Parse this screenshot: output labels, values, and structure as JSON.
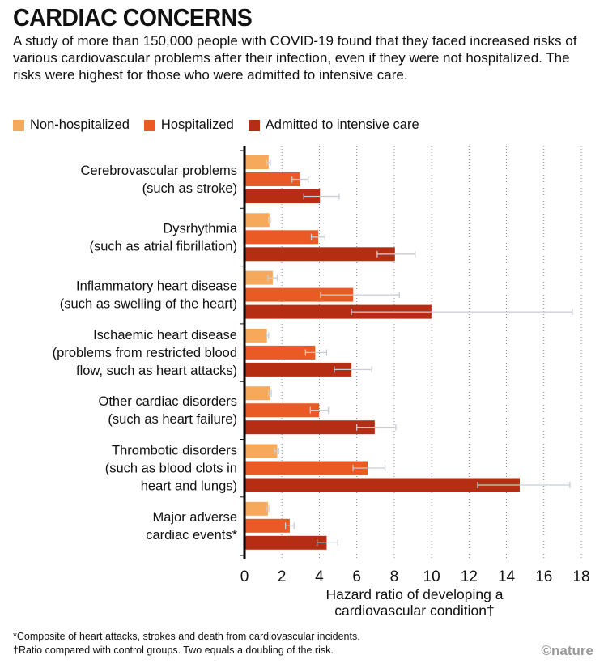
{
  "title": "CARDIAC CONCERNS",
  "subtitle": "A study of more than 150,000 people with COVID-19 found that they faced increased risks of various cardiovascular problems after their infection, even if they were not hospitalized. The risks were highest for those who were admitted to intensive care.",
  "footnotes": [
    "*Composite of heart attacks, strokes and death from cardiovascular incidents.",
    "†Ratio compared with control groups. Two equals a doubling of the risk."
  ],
  "logo": "©nature",
  "chart_data": {
    "type": "bar",
    "orientation": "horizontal",
    "xlabel": [
      "Hazard ratio of developing a",
      "cardiovascular condition†"
    ],
    "xlim": [
      0,
      18
    ],
    "xticks": [
      0,
      2,
      4,
      6,
      8,
      10,
      12,
      14,
      16,
      18
    ],
    "grid": "vertical dotted",
    "legend_position": "top",
    "categories": [
      [
        "Cerebrovascular problems",
        "(such as stroke)"
      ],
      [
        "Dysrhythmia",
        "(such as atrial fibrillation)"
      ],
      [
        "Inflammatory heart disease",
        "(such as swelling of the heart)"
      ],
      [
        "Ischaemic heart disease",
        "(problems from restricted blood",
        "flow, such as heart attacks)"
      ],
      [
        "Other cardiac disorders",
        "(such as heart failure)"
      ],
      [
        "Thrombotic disorders",
        "(such as blood clots in",
        "heart and lungs)"
      ],
      [
        "Major adverse",
        "cardiac events*"
      ]
    ],
    "series": [
      {
        "name": "Non-hospitalized",
        "color": "#f6a95a",
        "values": [
          1.29,
          1.33,
          1.51,
          1.2,
          1.38,
          1.75,
          1.25
        ],
        "ci_low": [
          1.19,
          1.28,
          1.25,
          1.17,
          1.29,
          1.61,
          1.17
        ],
        "ci_high": [
          1.38,
          1.38,
          1.75,
          1.29,
          1.43,
          1.83,
          1.3
        ]
      },
      {
        "name": "Hospitalized",
        "color": "#e95a24",
        "values": [
          2.96,
          3.94,
          5.81,
          3.78,
          3.99,
          6.58,
          2.42
        ],
        "ci_low": [
          2.54,
          3.57,
          4.06,
          3.26,
          3.52,
          5.8,
          2.19
        ],
        "ci_high": [
          3.41,
          4.3,
          8.28,
          4.39,
          4.48,
          7.51,
          2.65
        ]
      },
      {
        "name": "Admitted to intensive care",
        "color": "#b52d12",
        "values": [
          4.03,
          8.04,
          9.99,
          5.72,
          6.96,
          14.71,
          4.39
        ],
        "ci_low": [
          3.17,
          7.09,
          5.71,
          4.8,
          6.0,
          12.46,
          3.88
        ],
        "ci_high": [
          5.06,
          9.12,
          17.52,
          6.8,
          8.09,
          17.39,
          4.99
        ]
      }
    ]
  }
}
